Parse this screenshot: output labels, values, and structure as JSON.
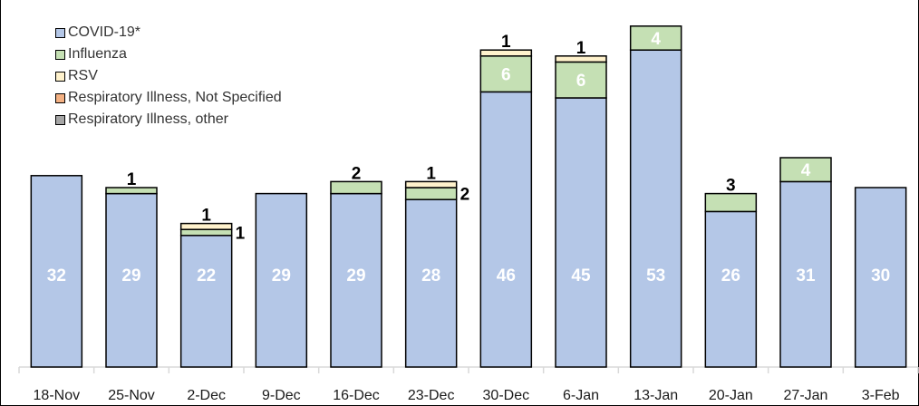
{
  "chart_data": {
    "type": "bar",
    "stacked": true,
    "title": "",
    "xlabel": "",
    "ylabel": "",
    "ylim": [
      0,
      59
    ],
    "grid": false,
    "legend_position": "top-left",
    "categories": [
      "18-Nov",
      "25-Nov",
      "2-Dec",
      "9-Dec",
      "16-Dec",
      "23-Dec",
      "30-Dec",
      "6-Jan",
      "13-Jan",
      "20-Jan",
      "27-Jan",
      "3-Feb"
    ],
    "series": [
      {
        "name": "COVID-19*",
        "color": "#b4c7e7",
        "values": [
          32,
          29,
          22,
          29,
          29,
          28,
          46,
          45,
          53,
          26,
          31,
          30
        ]
      },
      {
        "name": "Influenza",
        "color": "#c5e0b4",
        "values": [
          0,
          1,
          1,
          0,
          2,
          2,
          6,
          6,
          4,
          3,
          4,
          0
        ]
      },
      {
        "name": "RSV",
        "color": "#fff2cc",
        "values": [
          0,
          0,
          1,
          0,
          0,
          1,
          1,
          1,
          0,
          0,
          0,
          0
        ]
      },
      {
        "name": "Respiratory Illness, Not Specified",
        "color": "#f4b183",
        "values": [
          0,
          0,
          0,
          0,
          0,
          0,
          0,
          0,
          0,
          0,
          0,
          0
        ]
      },
      {
        "name": "Respiratory Illness, other",
        "color": "#a6a6a6",
        "values": [
          0,
          0,
          0,
          0,
          0,
          0,
          0,
          0,
          0,
          0,
          0,
          0
        ]
      }
    ]
  }
}
